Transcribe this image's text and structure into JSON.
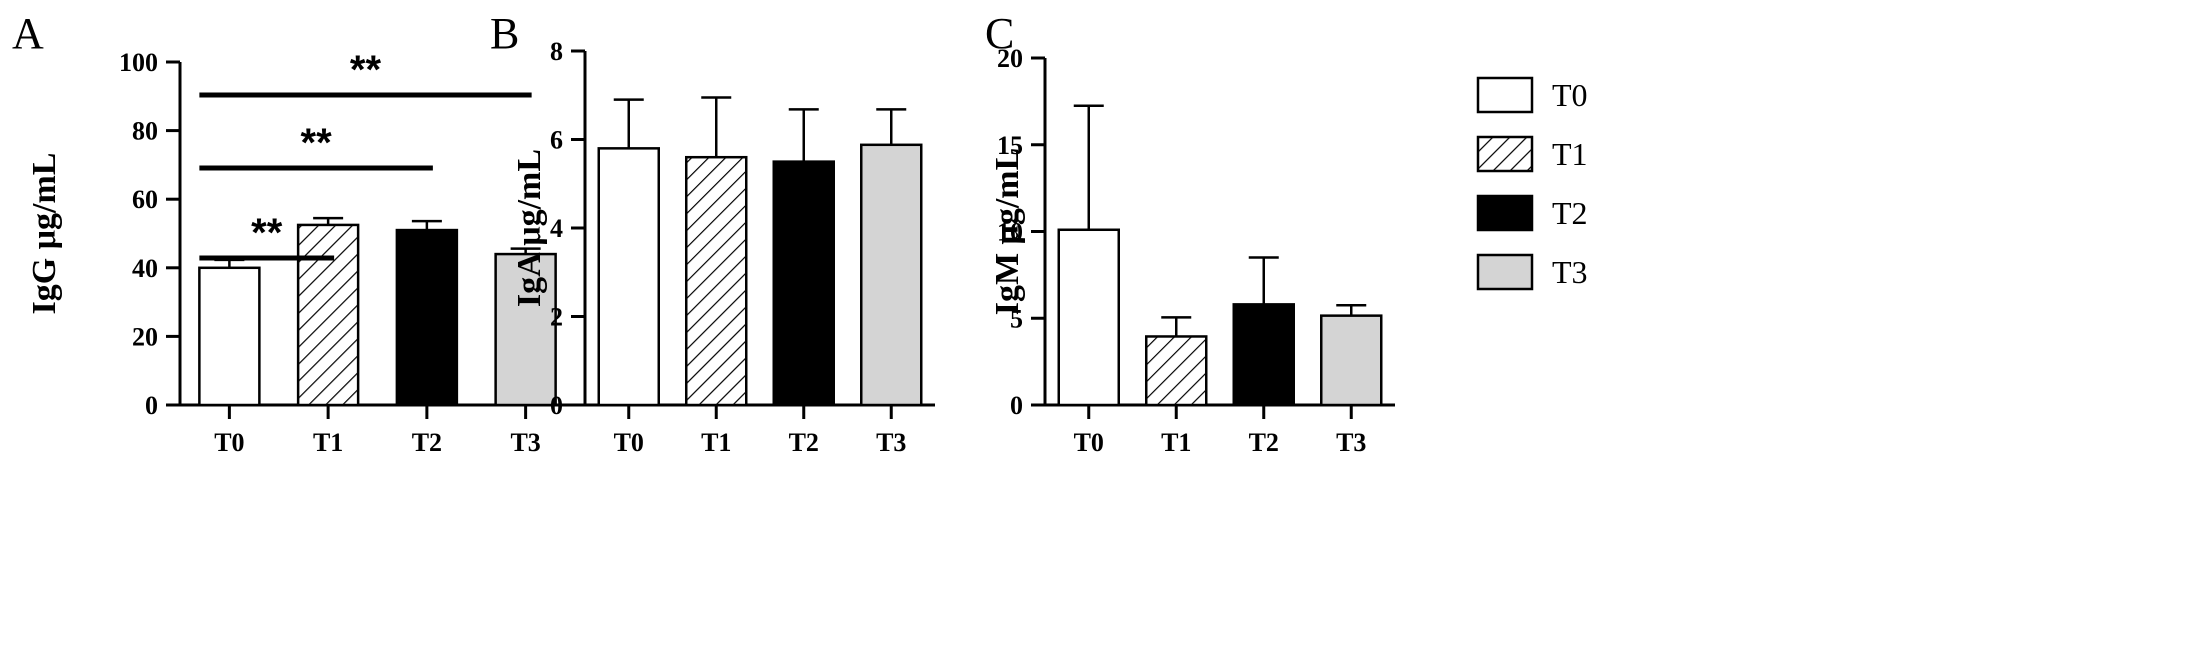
{
  "chart_data": [
    {
      "type": "bar",
      "panel": "A",
      "ylabel": "IgG μg/mL",
      "categories": [
        "T0",
        "T1",
        "T2",
        "T3"
      ],
      "values": [
        40,
        52.5,
        51,
        44
      ],
      "errors": [
        2.3,
        2.0,
        2.6,
        1.6
      ],
      "ylim": [
        0,
        100
      ],
      "yticks": [
        0,
        20,
        40,
        60,
        80,
        100
      ],
      "significance": [
        {
          "from": 0,
          "to": 1,
          "label": "**"
        },
        {
          "from": 0,
          "to": 2,
          "label": "**"
        },
        {
          "from": 0,
          "to": 3,
          "label": "**"
        }
      ]
    },
    {
      "type": "bar",
      "panel": "B",
      "ylabel": "IgA μg/mL",
      "categories": [
        "T0",
        "T1",
        "T2",
        "T3"
      ],
      "values": [
        5.8,
        5.6,
        5.5,
        5.88
      ],
      "errors": [
        1.1,
        1.35,
        1.18,
        0.8
      ],
      "ylim": [
        0,
        8
      ],
      "yticks": [
        0,
        2,
        4,
        6,
        8
      ],
      "significance": []
    },
    {
      "type": "bar",
      "panel": "C",
      "ylabel": "IgM μg/mL",
      "categories": [
        "T0",
        "T1",
        "T2",
        "T3"
      ],
      "values": [
        10.1,
        3.95,
        5.8,
        5.15
      ],
      "errors": [
        7.15,
        1.1,
        2.7,
        0.6
      ],
      "ylim": [
        0,
        20
      ],
      "yticks": [
        0,
        5,
        10,
        15,
        20
      ],
      "significance": []
    }
  ],
  "legend": {
    "placement": "right",
    "items": [
      {
        "label": "T0",
        "pattern": "white"
      },
      {
        "label": "T1",
        "pattern": "hatched"
      },
      {
        "label": "T2",
        "pattern": "black"
      },
      {
        "label": "T3",
        "pattern": "grey"
      }
    ]
  },
  "colors": {
    "T0": "#ffffff",
    "T2": "#000000",
    "T3": "#d4d4d4",
    "stroke": "#000000"
  }
}
